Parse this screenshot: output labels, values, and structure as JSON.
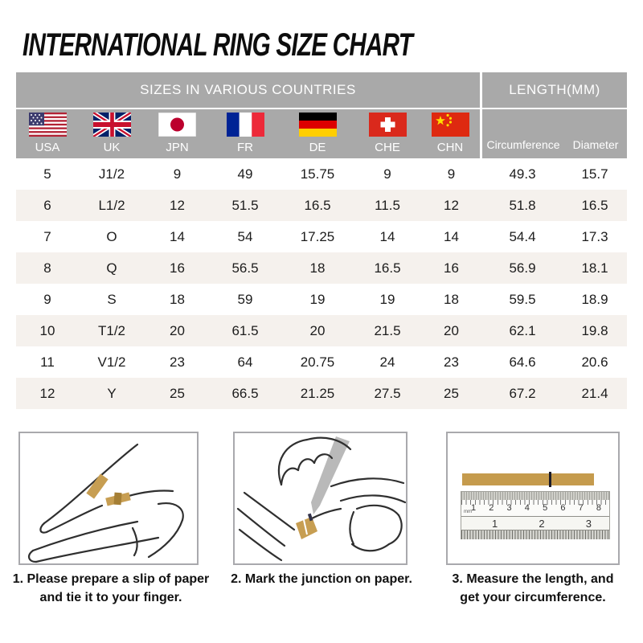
{
  "title": "INTERNATIONAL RING SIZE CHART",
  "table": {
    "group_headers": {
      "sizes": "SIZES IN VARIOUS COUNTRIES",
      "length": "LENGTH(MM)"
    },
    "country_columns": [
      {
        "code": "USA",
        "flag": "flag-usa"
      },
      {
        "code": "UK",
        "flag": "flag-uk"
      },
      {
        "code": "JPN",
        "flag": "flag-japan"
      },
      {
        "code": "FR",
        "flag": "flag-france"
      },
      {
        "code": "DE",
        "flag": "flag-germany"
      },
      {
        "code": "CHE",
        "flag": "flag-switzerland"
      },
      {
        "code": "CHN",
        "flag": "flag-china"
      }
    ],
    "length_columns": [
      "Circumference",
      "Diameter"
    ],
    "rows": [
      [
        "5",
        "J1/2",
        "9",
        "49",
        "15.75",
        "9",
        "9",
        "49.3",
        "15.7"
      ],
      [
        "6",
        "L1/2",
        "12",
        "51.5",
        "16.5",
        "11.5",
        "12",
        "51.8",
        "16.5"
      ],
      [
        "7",
        "O",
        "14",
        "54",
        "17.25",
        "14",
        "14",
        "54.4",
        "17.3"
      ],
      [
        "8",
        "Q",
        "16",
        "56.5",
        "18",
        "16.5",
        "16",
        "56.9",
        "18.1"
      ],
      [
        "9",
        "S",
        "18",
        "59",
        "19",
        "19",
        "18",
        "59.5",
        "18.9"
      ],
      [
        "10",
        "T1/2",
        "20",
        "61.5",
        "20",
        "21.5",
        "20",
        "62.1",
        "19.8"
      ],
      [
        "11",
        "V1/2",
        "23",
        "64",
        "20.75",
        "24",
        "23",
        "64.6",
        "20.6"
      ],
      [
        "12",
        "Y",
        "25",
        "66.5",
        "21.25",
        "27.5",
        "25",
        "67.2",
        "21.4"
      ]
    ]
  },
  "instructions": [
    {
      "caption": "1. Please prepare a slip of paper and tie it to your finger.",
      "illustration": "hand-with-paper-strip"
    },
    {
      "caption": "2. Mark the junction on paper.",
      "illustration": "marking-junction-with-pencil"
    },
    {
      "caption": "3. Measure the length, and get your circumference.",
      "illustration": "paper-strip-and-ruler"
    }
  ],
  "ruler": {
    "unit_label": "mm",
    "cm_numbers": [
      "1",
      "2",
      "3",
      "4",
      "5",
      "6",
      "7",
      "8"
    ],
    "inch_numbers": [
      "1",
      "2",
      "3"
    ]
  },
  "colors": {
    "header_gray": "#a9a9a9",
    "row_stripe": "#f5f1ed",
    "paper_gold": "#c79e52",
    "text_dark": "#1a1a1a"
  }
}
